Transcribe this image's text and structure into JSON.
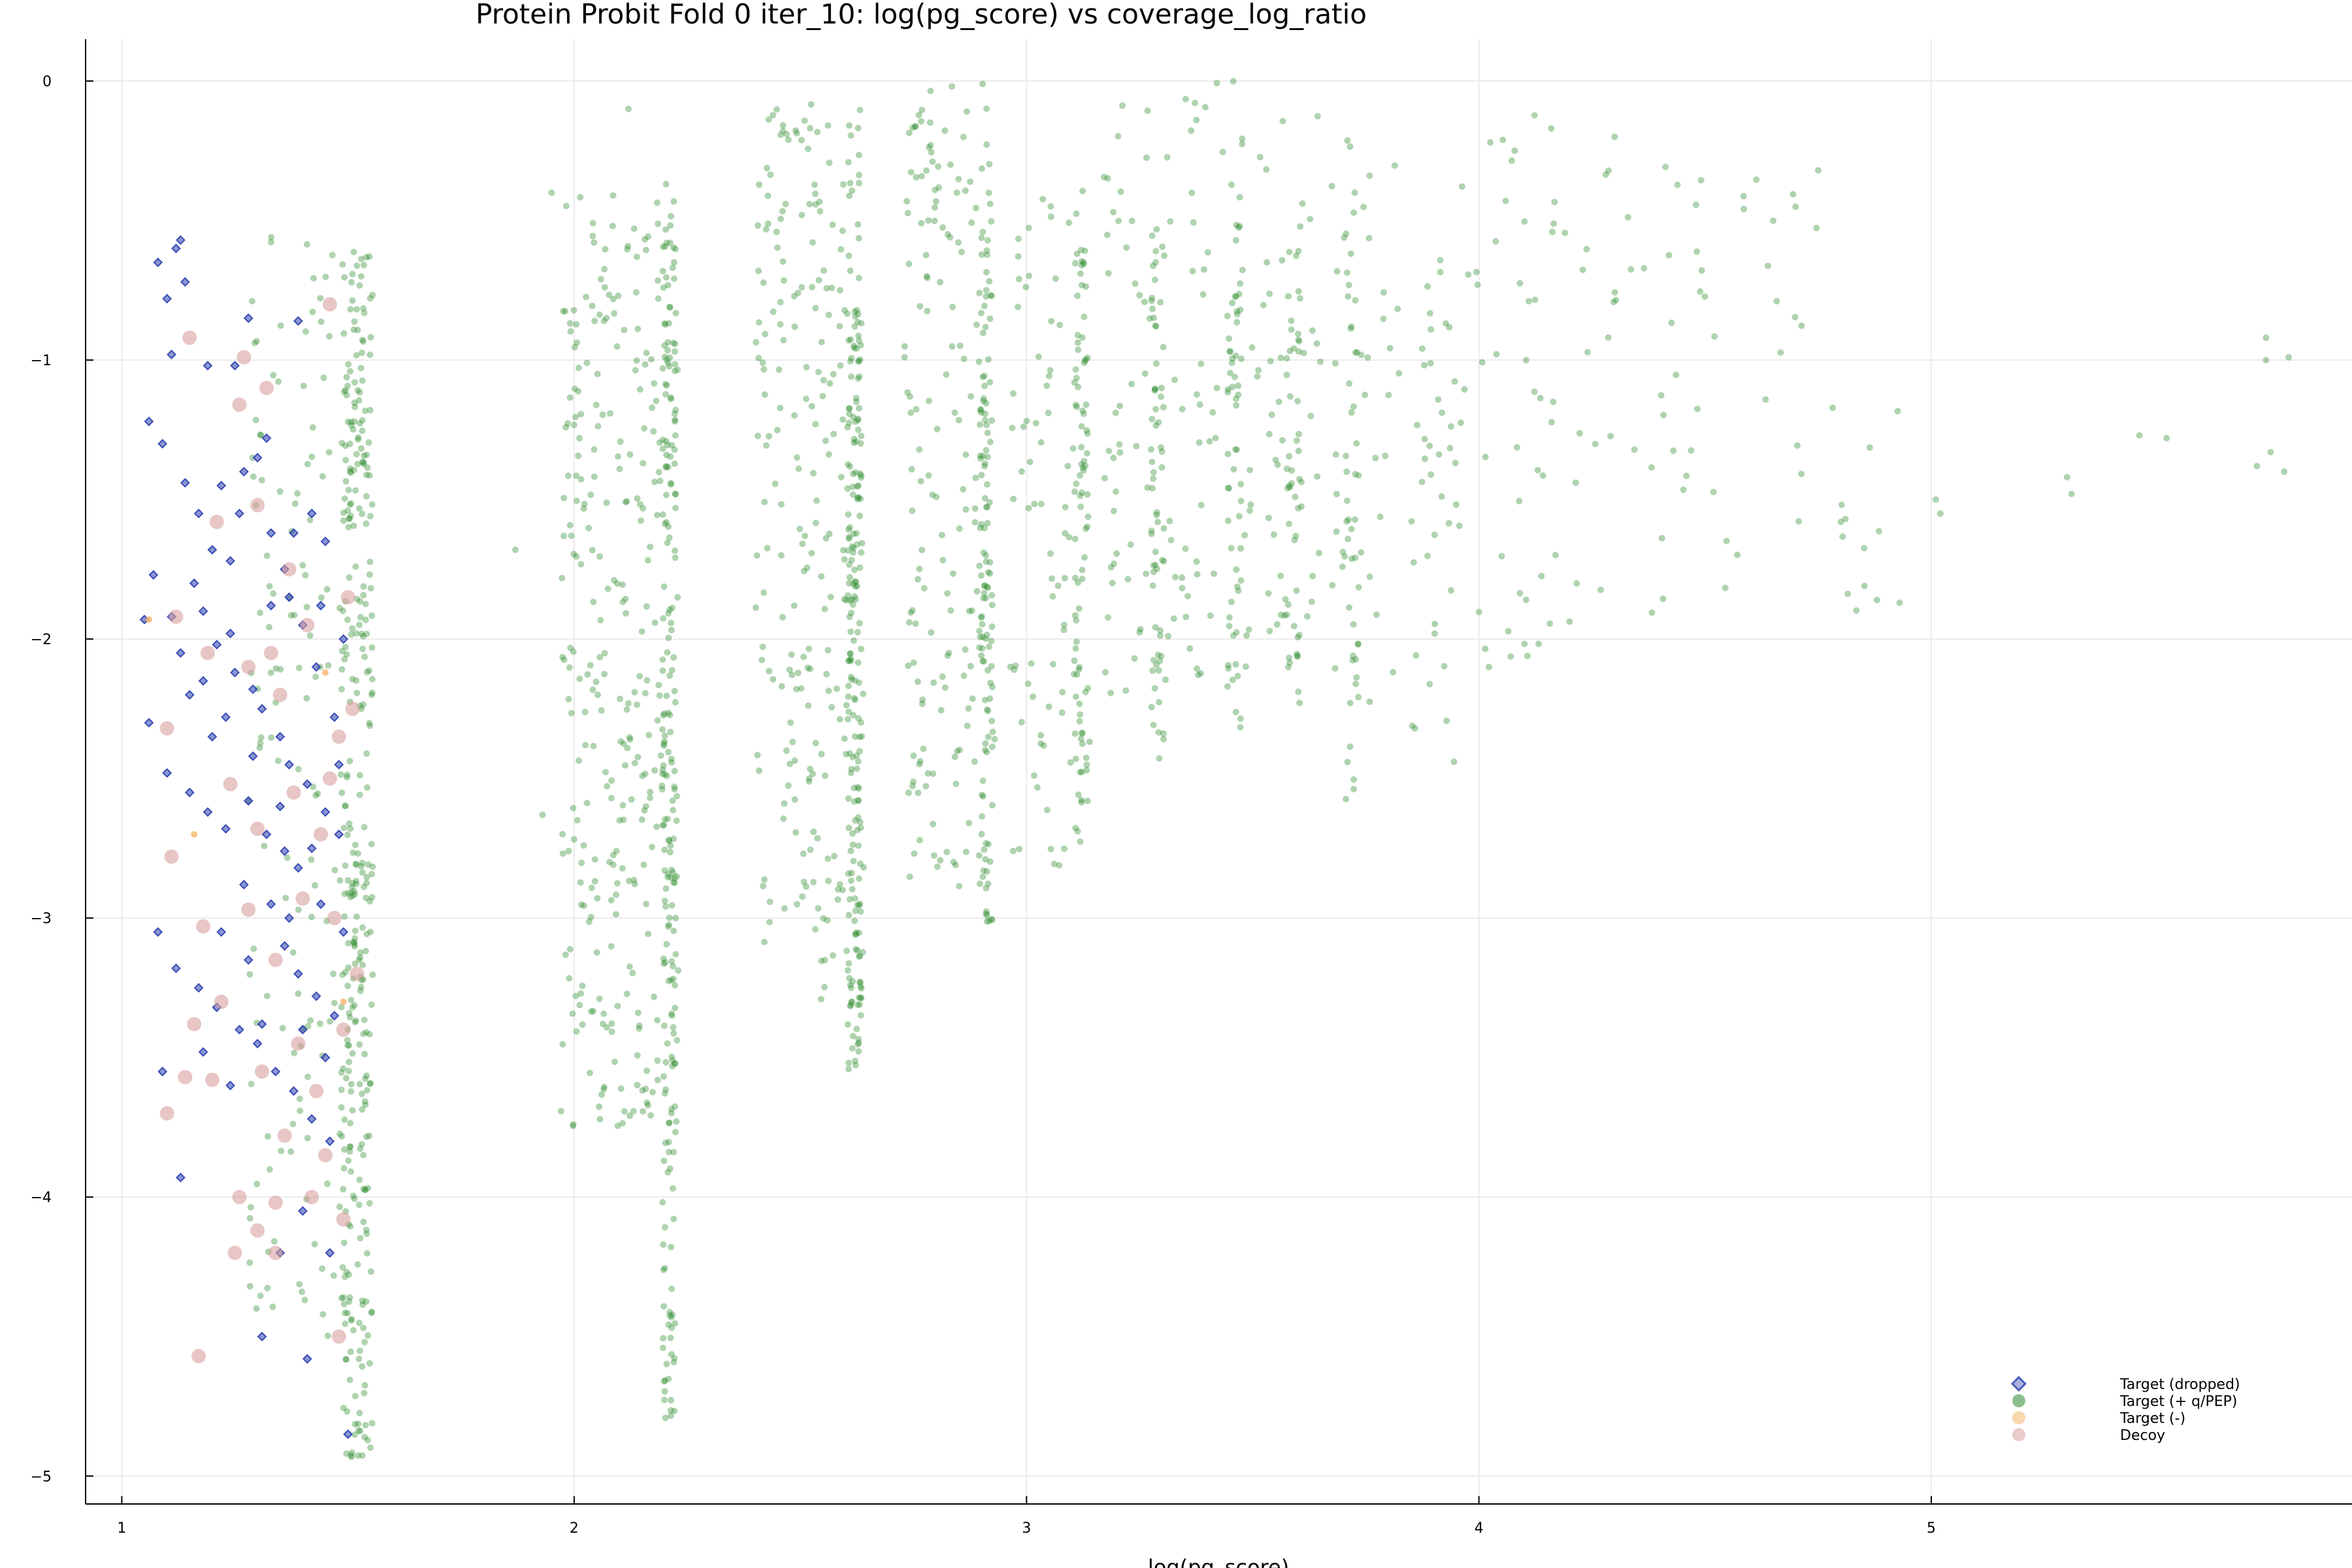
{
  "chart_data": {
    "type": "scatter",
    "title": "Protein Probit Fold 0 iter_10: log(pg_score) vs coverage_log_ratio",
    "xlabel": "log(pg_score)",
    "ylabel": "",
    "xlim": [
      0.92,
      5.93
    ],
    "ylim": [
      -5.1,
      0.15
    ],
    "x_ticks": [
      1,
      2,
      3,
      4,
      5
    ],
    "y_ticks": [
      0,
      -1,
      -2,
      -3,
      -4,
      -5
    ],
    "grid": true,
    "legend_position": "bottom-right",
    "colors": {
      "target_dropped": "#2b3fb0",
      "target_q_pep": "#2e8b2e",
      "target_minus": "#f5b56b",
      "decoy": "#d9a0a0"
    },
    "legend": [
      {
        "label": "Target (dropped)",
        "series": "target_dropped"
      },
      {
        "label": "Target (+ q/PEP)",
        "series": "target_q_pep"
      },
      {
        "label": "Target (-)",
        "series": "target_minus"
      },
      {
        "label": "Decoy",
        "series": "decoy"
      }
    ],
    "series": [
      {
        "key": "target_dropped",
        "name": "Target (dropped)",
        "marker": "diamond",
        "points": [
          [
            1.08,
            -0.65
          ],
          [
            1.1,
            -0.78
          ],
          [
            1.12,
            -0.6
          ],
          [
            1.13,
            -0.57
          ],
          [
            1.14,
            -0.72
          ],
          [
            1.11,
            -0.98
          ],
          [
            1.19,
            -1.02
          ],
          [
            1.06,
            -1.22
          ],
          [
            1.09,
            -1.3
          ],
          [
            1.14,
            -1.44
          ],
          [
            1.17,
            -1.55
          ],
          [
            1.22,
            -1.45
          ],
          [
            1.27,
            -1.4
          ],
          [
            1.3,
            -1.35
          ],
          [
            1.2,
            -1.68
          ],
          [
            1.24,
            -1.72
          ],
          [
            1.16,
            -1.8
          ],
          [
            1.11,
            -1.92
          ],
          [
            1.13,
            -2.05
          ],
          [
            1.21,
            -2.02
          ],
          [
            1.25,
            -2.12
          ],
          [
            1.29,
            -2.18
          ],
          [
            1.33,
            -1.88
          ],
          [
            1.36,
            -1.75
          ],
          [
            1.38,
            -1.62
          ],
          [
            1.42,
            -1.55
          ],
          [
            1.45,
            -1.65
          ],
          [
            1.4,
            -1.95
          ],
          [
            1.43,
            -2.1
          ],
          [
            1.47,
            -2.28
          ],
          [
            1.06,
            -2.3
          ],
          [
            1.1,
            -2.48
          ],
          [
            1.15,
            -2.55
          ],
          [
            1.19,
            -2.62
          ],
          [
            1.23,
            -2.68
          ],
          [
            1.28,
            -2.58
          ],
          [
            1.32,
            -2.7
          ],
          [
            1.36,
            -2.76
          ],
          [
            1.39,
            -2.82
          ],
          [
            1.44,
            -2.95
          ],
          [
            1.08,
            -3.05
          ],
          [
            1.12,
            -3.18
          ],
          [
            1.17,
            -3.25
          ],
          [
            1.21,
            -3.32
          ],
          [
            1.26,
            -3.4
          ],
          [
            1.3,
            -3.45
          ],
          [
            1.34,
            -3.55
          ],
          [
            1.38,
            -3.62
          ],
          [
            1.42,
            -3.72
          ],
          [
            1.46,
            -3.8
          ],
          [
            1.09,
            -3.55
          ],
          [
            1.13,
            -3.93
          ],
          [
            1.35,
            -4.2
          ],
          [
            1.4,
            -4.05
          ],
          [
            1.46,
            -4.2
          ],
          [
            1.31,
            -4.5
          ],
          [
            1.41,
            -4.58
          ],
          [
            1.5,
            -4.85
          ],
          [
            1.05,
            -1.93
          ],
          [
            1.07,
            -1.77
          ],
          [
            1.18,
            -1.9
          ],
          [
            1.24,
            -1.98
          ],
          [
            1.31,
            -2.25
          ],
          [
            1.35,
            -2.35
          ],
          [
            1.37,
            -2.45
          ],
          [
            1.41,
            -2.52
          ],
          [
            1.45,
            -2.62
          ],
          [
            1.48,
            -2.7
          ],
          [
            1.49,
            -3.05
          ],
          [
            1.47,
            -3.35
          ],
          [
            1.27,
            -2.88
          ],
          [
            1.33,
            -2.95
          ],
          [
            1.36,
            -3.1
          ],
          [
            1.39,
            -3.2
          ],
          [
            1.43,
            -3.28
          ],
          [
            1.22,
            -3.05
          ],
          [
            1.18,
            -3.48
          ],
          [
            1.28,
            -3.15
          ],
          [
            1.15,
            -2.2
          ],
          [
            1.2,
            -2.35
          ],
          [
            1.26,
            -1.55
          ],
          [
            1.33,
            -1.62
          ],
          [
            1.37,
            -1.85
          ],
          [
            1.44,
            -1.88
          ],
          [
            1.49,
            -2.0
          ],
          [
            1.48,
            -2.45
          ],
          [
            1.32,
            -1.28
          ],
          [
            1.25,
            -1.02
          ],
          [
            1.28,
            -0.85
          ],
          [
            1.39,
            -0.86
          ],
          [
            1.42,
            -2.75
          ],
          [
            1.35,
            -2.6
          ],
          [
            1.29,
            -2.42
          ],
          [
            1.23,
            -2.28
          ],
          [
            1.18,
            -2.15
          ],
          [
            1.45,
            -3.5
          ],
          [
            1.4,
            -3.4
          ],
          [
            1.37,
            -3.0
          ],
          [
            1.31,
            -3.38
          ],
          [
            1.24,
            -3.6
          ]
        ]
      },
      {
        "key": "target_minus",
        "name": "Target (-)",
        "marker": "circle",
        "points": [
          [
            1.06,
            -1.93
          ],
          [
            1.16,
            -2.7
          ],
          [
            1.45,
            -2.12
          ],
          [
            1.49,
            -3.3
          ]
        ]
      },
      {
        "key": "decoy",
        "name": "Decoy",
        "marker": "circle",
        "points": [
          [
            1.15,
            -0.92
          ],
          [
            1.27,
            -0.99
          ],
          [
            1.32,
            -1.1
          ],
          [
            1.26,
            -1.16
          ],
          [
            1.46,
            -0.8
          ],
          [
            1.21,
            -1.58
          ],
          [
            1.3,
            -1.52
          ],
          [
            1.37,
            -1.75
          ],
          [
            1.12,
            -1.92
          ],
          [
            1.19,
            -2.05
          ],
          [
            1.28,
            -2.1
          ],
          [
            1.33,
            -2.05
          ],
          [
            1.35,
            -2.2
          ],
          [
            1.41,
            -1.95
          ],
          [
            1.48,
            -2.35
          ],
          [
            1.1,
            -2.32
          ],
          [
            1.24,
            -2.52
          ],
          [
            1.3,
            -2.68
          ],
          [
            1.38,
            -2.55
          ],
          [
            1.44,
            -2.7
          ],
          [
            1.11,
            -2.78
          ],
          [
            1.18,
            -3.03
          ],
          [
            1.28,
            -2.97
          ],
          [
            1.34,
            -3.15
          ],
          [
            1.4,
            -2.93
          ],
          [
            1.47,
            -3.0
          ],
          [
            1.16,
            -3.38
          ],
          [
            1.2,
            -3.58
          ],
          [
            1.31,
            -3.55
          ],
          [
            1.36,
            -3.78
          ],
          [
            1.43,
            -3.62
          ],
          [
            1.49,
            -3.4
          ],
          [
            1.1,
            -3.7
          ],
          [
            1.14,
            -3.57
          ],
          [
            1.26,
            -4.0
          ],
          [
            1.3,
            -4.12
          ],
          [
            1.34,
            -4.02
          ],
          [
            1.42,
            -4.0
          ],
          [
            1.49,
            -4.08
          ],
          [
            1.25,
            -4.2
          ],
          [
            1.34,
            -4.2
          ],
          [
            1.48,
            -4.5
          ],
          [
            1.17,
            -4.57
          ],
          [
            1.45,
            -3.85
          ],
          [
            1.39,
            -3.45
          ],
          [
            1.22,
            -3.3
          ],
          [
            1.46,
            -2.5
          ],
          [
            1.51,
            -2.25
          ],
          [
            1.5,
            -1.85
          ],
          [
            1.52,
            -3.2
          ]
        ]
      },
      {
        "key": "target_q_pep",
        "name": "Target (+ q/PEP)",
        "marker": "circle",
        "clusters": [
          {
            "x": 1.52,
            "spread": 0.035,
            "n": 320,
            "y_min": -4.95,
            "y_max": -0.62
          },
          {
            "x": 1.4,
            "spread": 0.12,
            "n": 160,
            "y_min": -4.5,
            "y_max": -0.45
          },
          {
            "x": 2.21,
            "spread": 0.015,
            "n": 180,
            "y_min": -4.8,
            "y_max": -0.35
          },
          {
            "x": 2.1,
            "spread": 0.13,
            "n": 320,
            "y_min": -3.75,
            "y_max": -0.4
          },
          {
            "x": 2.62,
            "spread": 0.015,
            "n": 160,
            "y_min": -3.55,
            "y_max": -0.82
          },
          {
            "x": 2.52,
            "spread": 0.12,
            "n": 260,
            "y_min": -3.3,
            "y_max": -0.07
          },
          {
            "x": 2.91,
            "spread": 0.015,
            "n": 110,
            "y_min": -3.02,
            "y_max": -0.55
          },
          {
            "x": 2.83,
            "spread": 0.1,
            "n": 170,
            "y_min": -2.9,
            "y_max": 0.0
          },
          {
            "x": 3.12,
            "spread": 0.015,
            "n": 70,
            "y_min": -2.7,
            "y_max": -0.6
          },
          {
            "x": 3.05,
            "spread": 0.09,
            "n": 90,
            "y_min": -2.88,
            "y_max": -0.38
          },
          {
            "x": 3.29,
            "spread": 0.015,
            "n": 60,
            "y_min": -2.43,
            "y_max": -0.5
          },
          {
            "x": 3.25,
            "spread": 0.08,
            "n": 60,
            "y_min": -2.2,
            "y_max": -0.08
          },
          {
            "x": 3.46,
            "spread": 0.015,
            "n": 50,
            "y_min": -2.4,
            "y_max": -0.42
          },
          {
            "x": 3.42,
            "spread": 0.08,
            "n": 60,
            "y_min": -2.2,
            "y_max": 0.0
          },
          {
            "x": 3.59,
            "spread": 0.015,
            "n": 40,
            "y_min": -2.33,
            "y_max": -0.4
          },
          {
            "x": 3.58,
            "spread": 0.07,
            "n": 50,
            "y_min": -2.0,
            "y_max": -0.1
          },
          {
            "x": 3.72,
            "spread": 0.015,
            "n": 35,
            "y_min": -2.58,
            "y_max": -0.5
          },
          {
            "x": 3.75,
            "spread": 0.08,
            "n": 45,
            "y_min": -2.3,
            "y_max": -0.18
          },
          {
            "x": 3.9,
            "spread": 0.05,
            "n": 40,
            "y_min": -2.45,
            "y_max": -0.55
          },
          {
            "x": 4.05,
            "spread": 0.1,
            "n": 40,
            "y_min": -2.2,
            "y_max": -0.1
          },
          {
            "x": 4.3,
            "spread": 0.15,
            "n": 40,
            "y_min": -1.95,
            "y_max": -0.2
          },
          {
            "x": 4.6,
            "spread": 0.15,
            "n": 30,
            "y_min": -1.85,
            "y_max": -0.35
          },
          {
            "x": 4.85,
            "spread": 0.08,
            "n": 10,
            "y_min": -1.9,
            "y_max": -1.15
          }
        ],
        "points": [
          [
            5.01,
            -1.5
          ],
          [
            5.02,
            -1.55
          ],
          [
            5.3,
            -1.42
          ],
          [
            5.31,
            -1.48
          ],
          [
            5.46,
            -1.27
          ],
          [
            5.52,
            -1.28
          ],
          [
            5.72,
            -1.38
          ],
          [
            5.74,
            -0.92
          ],
          [
            5.74,
            -1.0
          ],
          [
            5.75,
            -1.33
          ],
          [
            5.78,
            -1.4
          ],
          [
            5.79,
            -0.99
          ],
          [
            4.81,
            -1.57
          ],
          [
            4.8,
            -1.58
          ],
          [
            4.88,
            -1.86
          ],
          [
            4.93,
            -1.87
          ],
          [
            4.7,
            -0.45
          ],
          [
            4.75,
            -0.32
          ],
          [
            4.3,
            -0.2
          ],
          [
            4.16,
            -0.17
          ],
          [
            1.87,
            -1.68
          ],
          [
            1.93,
            -2.63
          ],
          [
            1.95,
            -0.4
          ],
          [
            2.12,
            -0.1
          ]
        ]
      }
    ]
  }
}
